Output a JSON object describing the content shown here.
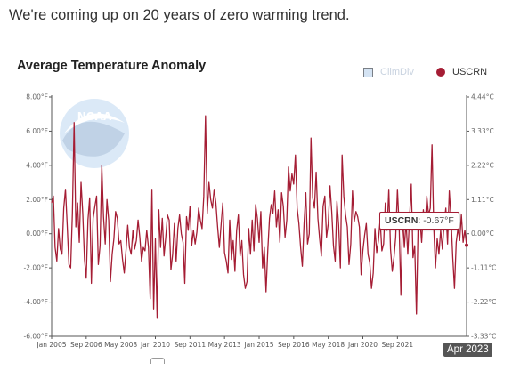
{
  "headline": "We're coming up on 20 years of zero warming trend.",
  "logo_text": "NOAA",
  "chart_data": {
    "type": "line",
    "title": "Average Temperature Anomaly",
    "legend": [
      {
        "name": "ClimDiv",
        "color": "#d4e3f3",
        "visible": false
      },
      {
        "name": "USCRN",
        "color": "#a51d34",
        "visible": true
      }
    ],
    "legend_position": "top-right",
    "ylim_f": [
      -6,
      8
    ],
    "ylim_c": [
      -3.33,
      4.44
    ],
    "y_ticks_left": [
      "8.00°F",
      "6.00°F",
      "4.00°F",
      "2.00°F",
      "0.00°F",
      "-2.00°F",
      "-4.00°F",
      "-6.00°F"
    ],
    "y_ticks_right": [
      "4.44°C",
      "3.33°C",
      "2.22°C",
      "1.11°C",
      "0.00°C",
      "-1.11°C",
      "-2.22°C",
      "-3.33°C"
    ],
    "x_ticks": [
      "Jan 2005",
      "Sep 2006",
      "May 2008",
      "Jan 2010",
      "Sep 2011",
      "May 2013",
      "Jan 2015",
      "Sep 2016",
      "May 2018",
      "Jan 2020",
      "Sep 2021"
    ],
    "x_start": "2005-01",
    "x_end": "2023-04",
    "grid": false,
    "series": [
      {
        "name": "USCRN",
        "color": "#a51d34",
        "values": [
          1.8,
          2.2,
          -0.8,
          -1.6,
          0.3,
          -0.9,
          -1.2,
          1.5,
          2.6,
          0.5,
          -1.8,
          -2.0,
          1.2,
          6.5,
          0.4,
          1.8,
          -0.5,
          3.0,
          1.2,
          -1.5,
          -2.6,
          0.8,
          2.1,
          -2.9,
          0.9,
          1.6,
          2.2,
          -1.8,
          -0.7,
          4.0,
          1.0,
          -0.6,
          2.0,
          0.8,
          -2.8,
          -1.2,
          -0.3,
          1.3,
          0.9,
          -0.6,
          -0.4,
          -1.5,
          -2.3,
          -1.0,
          0.5,
          -0.8,
          -1.2,
          0.2,
          -0.9,
          -0.4,
          0.8,
          -0.2,
          -1.6,
          -0.8,
          -1.0,
          0.2,
          -0.8,
          -3.8,
          2.6,
          -4.4,
          -0.3,
          -4.9,
          1.4,
          -0.8,
          0.9,
          -1.3,
          -0.2,
          1.1,
          0.8,
          -2.1,
          -1.2,
          0.6,
          -1.6,
          0.3,
          1.1,
          0.0,
          -0.5,
          -2.9,
          1.0,
          0.2,
          1.6,
          -0.7,
          0.2,
          -0.6,
          0.1,
          1.5,
          0.8,
          0.3,
          2.2,
          6.9,
          1.2,
          3.0,
          2.0,
          1.5,
          2.6,
          1.8,
          0.4,
          -0.8,
          0.5,
          1.8,
          -1.1,
          -1.6,
          -2.3,
          0.8,
          -1.5,
          -0.4,
          -2.2,
          0.2,
          1.1,
          -1.3,
          -0.4,
          -2.4,
          -3.2,
          -2.8,
          0.3,
          -1.2,
          0.8,
          -1.0,
          1.7,
          0.9,
          -0.5,
          1.3,
          -2.0,
          -0.8,
          -3.4,
          -1.0,
          0.9,
          1.7,
          1.2,
          2.5,
          0.4,
          1.4,
          -0.5,
          2.4,
          1.6,
          -0.2,
          0.8,
          3.9,
          2.5,
          3.5,
          2.9,
          4.6,
          1.5,
          0.6,
          -0.8,
          -1.9,
          0.6,
          2.4,
          -0.6,
          0.0,
          5.6,
          2.1,
          1.5,
          3.6,
          0.9,
          -0.3,
          -1.3,
          1.6,
          2.2,
          -0.2,
          0.6,
          2.8,
          1.3,
          -0.7,
          -1.6,
          1.9,
          0.5,
          -2.0,
          4.6,
          2.2,
          1.1,
          0.4,
          -1.8,
          -0.6,
          2.5,
          0.7,
          1.3,
          1.0,
          0.4,
          -2.4,
          -1.0,
          -0.1,
          0.6,
          -1.2,
          -1.7,
          -3.2,
          -2.3,
          0.3,
          -1.1,
          -0.4,
          0.8,
          -1.0,
          -0.6,
          1.8,
          0.2,
          2.6,
          -0.9,
          -2.2,
          -1.4,
          -0.2,
          2.6,
          0.4,
          -3.6,
          1.1,
          -0.8,
          0.7,
          -1.2,
          0.9,
          2.9,
          -1.4,
          -0.7,
          -4.7,
          0.7,
          0.9,
          -0.5,
          1.4,
          0.3,
          2.2,
          1.1,
          1.5,
          5.2,
          0.4,
          -2.0,
          -0.3,
          -1.2,
          0.2,
          -0.9,
          0.6,
          1.5,
          -0.6,
          2.5,
          0.9,
          -1.4,
          -3.2,
          -0.5,
          0.3,
          -0.4,
          1.1,
          -0.5,
          0.2,
          -0.67
        ]
      }
    ],
    "tooltip": {
      "series": "USCRN",
      "value": "-0.67°F",
      "x_label": "Apr 2023"
    }
  }
}
